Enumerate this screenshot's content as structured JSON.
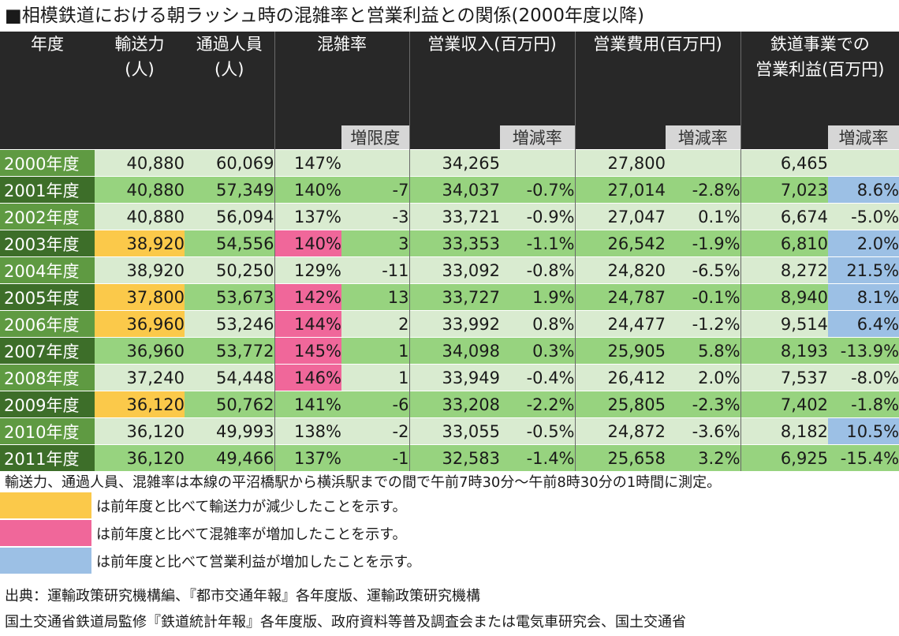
{
  "title": "■相模鉄道における朝ラッシュ時の混雑率と営業利益との関係(2000年度以降)",
  "headers": {
    "year": "年度",
    "capacity": [
      "輸送力",
      "(人)"
    ],
    "passengers": [
      "通過人員",
      "(人)"
    ],
    "congestion": "混雑率",
    "revenue": "営業収入(百万円)",
    "expenses": "営業費用(百万円)",
    "profit": [
      "鉄道事業での",
      "営業利益(百万円)"
    ],
    "sub_change": "増限度",
    "sub_rate": "増減率"
  },
  "rows": [
    {
      "year": "2000年度",
      "capacity": "40,880",
      "passengers": "60,069",
      "congestion": "147%",
      "cong_change": "",
      "revenue": "34,265",
      "rev_rate": "",
      "expenses": "27,800",
      "exp_rate": "",
      "profit": "6,465",
      "profit_rate": ""
    },
    {
      "year": "2001年度",
      "capacity": "40,880",
      "passengers": "57,349",
      "congestion": "140%",
      "cong_change": "-7",
      "revenue": "34,037",
      "rev_rate": "-0.7%",
      "expenses": "27,014",
      "exp_rate": "-2.8%",
      "profit": "7,023",
      "profit_rate": "8.6%"
    },
    {
      "year": "2002年度",
      "capacity": "40,880",
      "passengers": "56,094",
      "congestion": "137%",
      "cong_change": "-3",
      "revenue": "33,721",
      "rev_rate": "-0.9%",
      "expenses": "27,047",
      "exp_rate": "0.1%",
      "profit": "6,674",
      "profit_rate": "-5.0%"
    },
    {
      "year": "2003年度",
      "capacity": "38,920",
      "passengers": "54,556",
      "congestion": "140%",
      "cong_change": "3",
      "revenue": "33,353",
      "rev_rate": "-1.1%",
      "expenses": "26,542",
      "exp_rate": "-1.9%",
      "profit": "6,810",
      "profit_rate": "2.0%"
    },
    {
      "year": "2004年度",
      "capacity": "38,920",
      "passengers": "50,250",
      "congestion": "129%",
      "cong_change": "-11",
      "revenue": "33,092",
      "rev_rate": "-0.8%",
      "expenses": "24,820",
      "exp_rate": "-6.5%",
      "profit": "8,272",
      "profit_rate": "21.5%"
    },
    {
      "year": "2005年度",
      "capacity": "37,800",
      "passengers": "53,673",
      "congestion": "142%",
      "cong_change": "13",
      "revenue": "33,727",
      "rev_rate": "1.9%",
      "expenses": "24,787",
      "exp_rate": "-0.1%",
      "profit": "8,940",
      "profit_rate": "8.1%"
    },
    {
      "year": "2006年度",
      "capacity": "36,960",
      "passengers": "53,246",
      "congestion": "144%",
      "cong_change": "2",
      "revenue": "33,992",
      "rev_rate": "0.8%",
      "expenses": "24,477",
      "exp_rate": "-1.2%",
      "profit": "9,514",
      "profit_rate": "6.4%"
    },
    {
      "year": "2007年度",
      "capacity": "36,960",
      "passengers": "53,772",
      "congestion": "145%",
      "cong_change": "1",
      "revenue": "34,098",
      "rev_rate": "0.3%",
      "expenses": "25,905",
      "exp_rate": "5.8%",
      "profit": "8,193",
      "profit_rate": "-13.9%"
    },
    {
      "year": "2008年度",
      "capacity": "37,240",
      "passengers": "54,448",
      "congestion": "146%",
      "cong_change": "1",
      "revenue": "33,949",
      "rev_rate": "-0.4%",
      "expenses": "26,412",
      "exp_rate": "2.0%",
      "profit": "7,537",
      "profit_rate": "-8.0%"
    },
    {
      "year": "2009年度",
      "capacity": "36,120",
      "passengers": "50,762",
      "congestion": "141%",
      "cong_change": "-6",
      "revenue": "33,208",
      "rev_rate": "-2.2%",
      "expenses": "25,805",
      "exp_rate": "-2.3%",
      "profit": "7,402",
      "profit_rate": "-1.8%"
    },
    {
      "year": "2010年度",
      "capacity": "36,120",
      "passengers": "49,993",
      "congestion": "138%",
      "cong_change": "-2",
      "revenue": "33,055",
      "rev_rate": "-0.5%",
      "expenses": "24,872",
      "exp_rate": "-3.6%",
      "profit": "8,182",
      "profit_rate": "10.5%"
    },
    {
      "year": "2011年度",
      "capacity": "36,120",
      "passengers": "49,466",
      "congestion": "137%",
      "cong_change": "-1",
      "revenue": "32,583",
      "rev_rate": "-1.4%",
      "expenses": "25,658",
      "exp_rate": "3.2%",
      "profit": "6,925",
      "profit_rate": "-15.4%"
    }
  ],
  "highlight_colors": {
    "capacity_decrease": "#fbc94a",
    "congestion_increase": "#f0679a",
    "profit_increase": "#9cc0e5"
  },
  "notes": {
    "measurement": "輸送力、通過人員、混雑率は本線の平沼橋駅から横浜駅までの間で午前7時30分～午前8時30分の1時間に測定。",
    "legend_yellow": "は前年度と比べて輸送力が減少したことを示す。",
    "legend_pink": "は前年度と比べて混雑率が増加したことを示す。",
    "legend_blue": "は前年度と比べて営業利益が増加したことを示す。",
    "source1": "出典：運輸政策研究機構編、『都市交通年報』各年度版、運輸政策研究機構",
    "source2": "国土交通省鉄道局監修『鉄道統計年報』各年度版、政府資料等普及調査会または電気車研究会、国土交通省"
  }
}
